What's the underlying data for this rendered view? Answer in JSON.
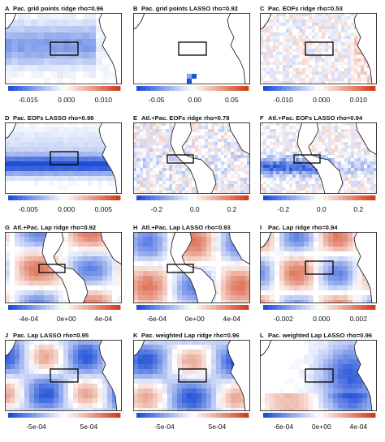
{
  "panels": [
    {
      "letter": "A",
      "title": "Pac. grid points ridge rho=0.96",
      "ticks": [
        "-0.015",
        "0.000",
        "0.010"
      ],
      "style": "grid-ridge"
    },
    {
      "letter": "B",
      "title": "Pac. grid points LASSO rho=0.92",
      "ticks": [
        "-0.05",
        "0.00",
        "0.05"
      ],
      "style": "grid-lasso"
    },
    {
      "letter": "C",
      "title": "Pac. EOFs ridge rho=0.53",
      "ticks": [
        "-0.010",
        "0.000",
        "0.010"
      ],
      "style": "noisy"
    },
    {
      "letter": "D",
      "title": "Pac. EOFs LASSO rho=0.98",
      "ticks": [
        "-0.005",
        "0.000",
        "0.005"
      ],
      "style": "band"
    },
    {
      "letter": "E",
      "title": "Atl.+Pac. EOFs ridge rho=0.78",
      "ticks": [
        "-0.2",
        "0.0",
        "0.2"
      ],
      "style": "noisy-atl"
    },
    {
      "letter": "F",
      "title": "Atl.+Pac. EOFs LASSO rho=0.94",
      "ticks": [
        "-0.2",
        "0.0",
        "0.2"
      ],
      "style": "band-atl"
    },
    {
      "letter": "G",
      "title": "Atl.+Pac. Lap ridge rho=0.92",
      "ticks": [
        "-4e-04",
        "0e+00",
        "4e-04"
      ],
      "style": "blobs-atl"
    },
    {
      "letter": "H",
      "title": "Atl.+Pac. Lap LASSO rho=0.93",
      "ticks": [
        "-6e-04",
        "0e+00",
        "4e-04"
      ],
      "style": "blobs-atl2"
    },
    {
      "letter": "I",
      "title": "Pac. Lap ridge rho=0.94",
      "ticks": [
        "-0.002",
        "0.000",
        "0.002"
      ],
      "style": "blobs"
    },
    {
      "letter": "J",
      "title": "Pac. Lap LASSO rho=0.95",
      "ticks": [
        "-5e-04",
        "5e-04"
      ],
      "style": "blobs-lasso"
    },
    {
      "letter": "K",
      "title": "Pac. weighted Lap ridge rho=0.96",
      "ticks": [
        "-5e-04",
        "5e-04"
      ],
      "style": "blobs-w"
    },
    {
      "letter": "L",
      "title": "Pac. weighted Lap LASSO rho=0.96",
      "ticks": [
        "-6e-04",
        "0e+00",
        "4e-04"
      ],
      "style": "blue-east"
    }
  ],
  "colors": {
    "negative": "#1f4fd8",
    "positive": "#d2401b",
    "neutral": "#ffffff",
    "land": "#ffffff",
    "coast": "#111111"
  }
}
